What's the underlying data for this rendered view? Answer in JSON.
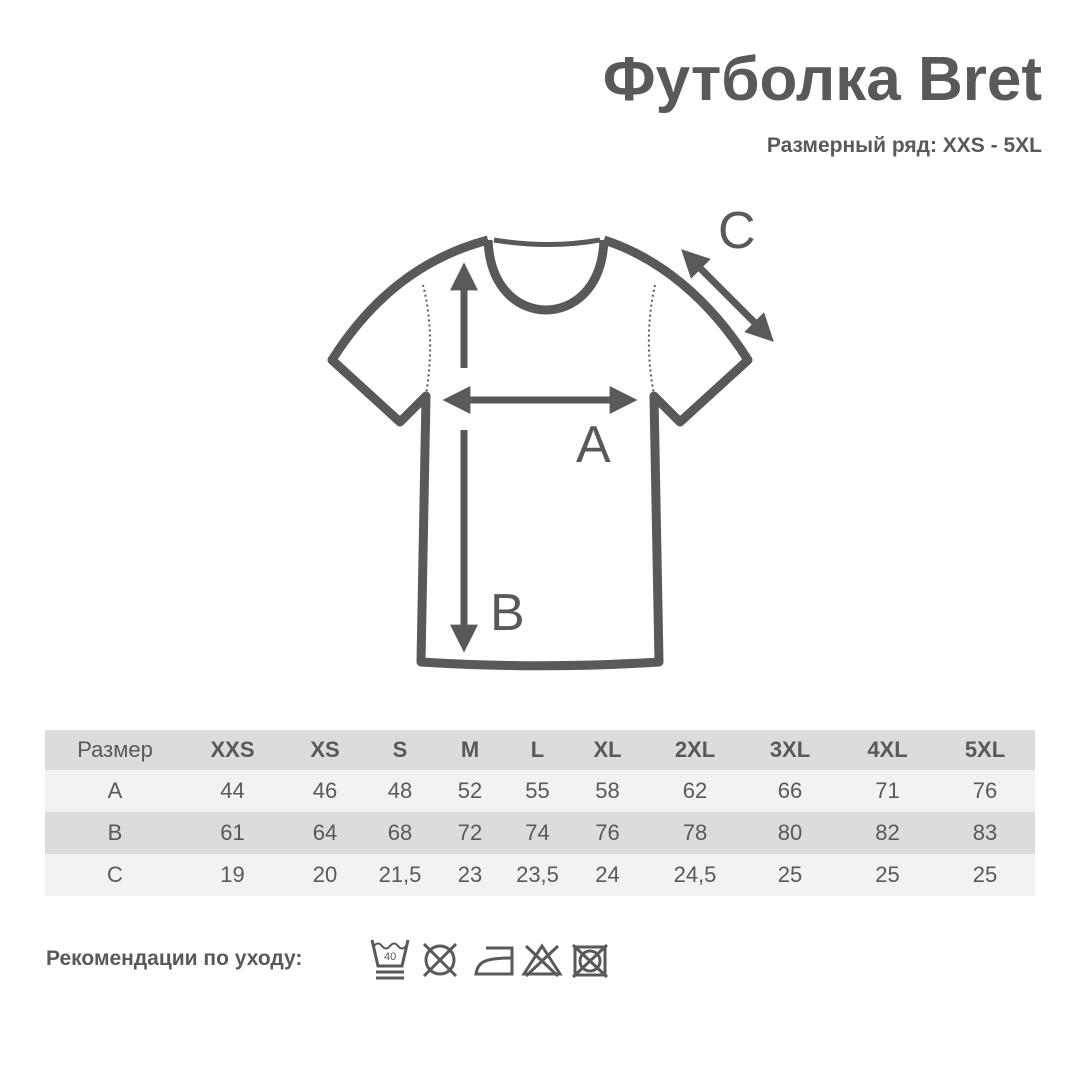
{
  "header": {
    "title": "Футболка Bret",
    "subtitle": "Размерный ряд: XXS - 5XL"
  },
  "diagram": {
    "labels": {
      "a": "A",
      "b": "B",
      "c": "C"
    },
    "color": "#58595b"
  },
  "size_table": {
    "columns": [
      "Размер",
      "XXS",
      "XS",
      "S",
      "M",
      "L",
      "XL",
      "2XL",
      "3XL",
      "4XL",
      "5XL"
    ],
    "rows": [
      [
        "A",
        "44",
        "46",
        "48",
        "52",
        "55",
        "58",
        "62",
        "66",
        "71",
        "76"
      ],
      [
        "B",
        "61",
        "64",
        "68",
        "72",
        "74",
        "76",
        "78",
        "80",
        "82",
        "83"
      ],
      [
        "C",
        "19",
        "20",
        "21,5",
        "23",
        "23,5",
        "24",
        "24,5",
        "25",
        "25",
        "25"
      ]
    ]
  },
  "care": {
    "label": "Рекомендации по уходу:",
    "wash_temp": "40",
    "icons": [
      "wash-40-icon",
      "no-tumble-dry-icon",
      "iron-low-icon",
      "no-bleach-icon",
      "no-dry-clean-icon"
    ]
  }
}
